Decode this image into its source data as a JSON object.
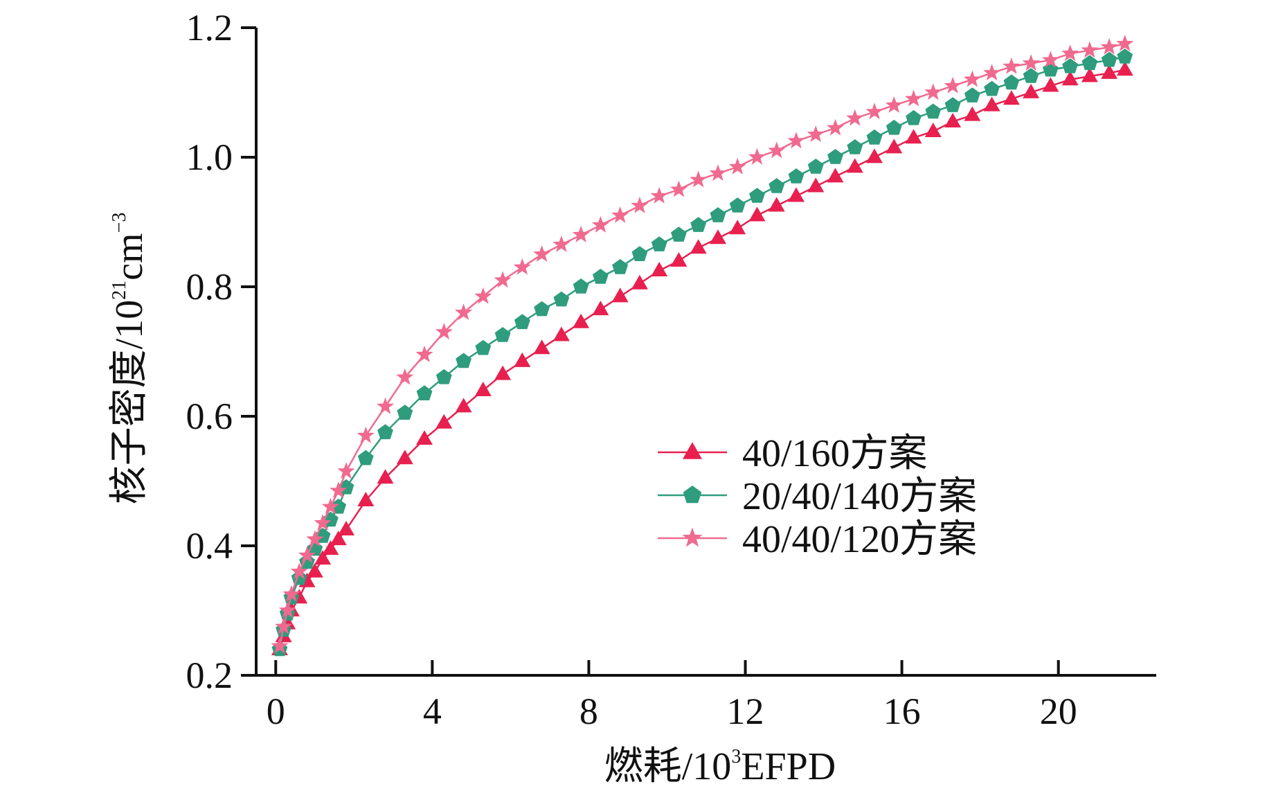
{
  "chart_data": {
    "type": "line",
    "title": "",
    "xlabel": {
      "prefix": "燃耗/10",
      "sup": "3",
      "suffix": "EFPD"
    },
    "ylabel": {
      "prefix": "核子密度/10",
      "sup": "21",
      "mid": "cm",
      "sup2": "−3"
    },
    "xlim": [
      -0.5,
      22.5
    ],
    "ylim": [
      0.2,
      1.2
    ],
    "xticks": [
      0,
      4,
      8,
      12,
      16,
      20
    ],
    "xtick_labels": [
      "0",
      "4",
      "8",
      "12",
      "16",
      "20"
    ],
    "yticks": [
      0.2,
      0.4,
      0.6,
      0.8,
      1.0,
      1.2
    ],
    "ytick_labels": [
      "0.2",
      "0.4",
      "0.6",
      "0.8",
      "1.0",
      "1.2"
    ],
    "grid": false,
    "legend_position": "center-right",
    "series": [
      {
        "name": "40/160方案",
        "color": "#e8204f",
        "marker": "triangle",
        "x": [
          0.1,
          0.2,
          0.3,
          0.4,
          0.6,
          0.8,
          1.0,
          1.2,
          1.4,
          1.6,
          1.8,
          2.3,
          2.8,
          3.3,
          3.8,
          4.3,
          4.8,
          5.3,
          5.8,
          6.3,
          6.8,
          7.3,
          7.8,
          8.3,
          8.8,
          9.3,
          9.8,
          10.3,
          10.8,
          11.3,
          11.8,
          12.3,
          12.8,
          13.3,
          13.8,
          14.3,
          14.8,
          15.3,
          15.8,
          16.3,
          16.8,
          17.3,
          17.8,
          18.3,
          18.8,
          19.3,
          19.8,
          20.3,
          20.8,
          21.3,
          21.7
        ],
        "y": [
          0.24,
          0.26,
          0.28,
          0.3,
          0.32,
          0.345,
          0.36,
          0.38,
          0.395,
          0.41,
          0.425,
          0.47,
          0.505,
          0.535,
          0.565,
          0.59,
          0.615,
          0.64,
          0.665,
          0.685,
          0.705,
          0.725,
          0.745,
          0.765,
          0.785,
          0.805,
          0.825,
          0.84,
          0.86,
          0.875,
          0.89,
          0.91,
          0.925,
          0.94,
          0.955,
          0.97,
          0.985,
          1.0,
          1.015,
          1.03,
          1.04,
          1.055,
          1.065,
          1.08,
          1.09,
          1.1,
          1.11,
          1.12,
          1.125,
          1.13,
          1.135
        ]
      },
      {
        "name": "20/40/140方案",
        "color": "#2e9c7d",
        "marker": "pentagon",
        "x": [
          0.1,
          0.2,
          0.3,
          0.4,
          0.6,
          0.8,
          1.0,
          1.2,
          1.4,
          1.6,
          1.8,
          2.3,
          2.8,
          3.3,
          3.8,
          4.3,
          4.8,
          5.3,
          5.8,
          6.3,
          6.8,
          7.3,
          7.8,
          8.3,
          8.8,
          9.3,
          9.8,
          10.3,
          10.8,
          11.3,
          11.8,
          12.3,
          12.8,
          13.3,
          13.8,
          14.3,
          14.8,
          15.3,
          15.8,
          16.3,
          16.8,
          17.3,
          17.8,
          18.3,
          18.8,
          19.3,
          19.8,
          20.3,
          20.8,
          21.3,
          21.7
        ],
        "y": [
          0.24,
          0.27,
          0.295,
          0.32,
          0.35,
          0.375,
          0.395,
          0.415,
          0.44,
          0.46,
          0.49,
          0.535,
          0.575,
          0.605,
          0.635,
          0.66,
          0.685,
          0.705,
          0.725,
          0.745,
          0.765,
          0.78,
          0.8,
          0.815,
          0.83,
          0.85,
          0.865,
          0.88,
          0.895,
          0.91,
          0.925,
          0.94,
          0.955,
          0.97,
          0.985,
          1.0,
          1.015,
          1.03,
          1.045,
          1.06,
          1.07,
          1.08,
          1.095,
          1.105,
          1.115,
          1.125,
          1.135,
          1.14,
          1.145,
          1.15,
          1.155
        ]
      },
      {
        "name": "40/40/120方案",
        "color": "#f06a90",
        "marker": "star",
        "x": [
          0.1,
          0.2,
          0.3,
          0.4,
          0.6,
          0.8,
          1.0,
          1.2,
          1.4,
          1.6,
          1.8,
          2.3,
          2.8,
          3.3,
          3.8,
          4.3,
          4.8,
          5.3,
          5.8,
          6.3,
          6.8,
          7.3,
          7.8,
          8.3,
          8.8,
          9.3,
          9.8,
          10.3,
          10.8,
          11.3,
          11.8,
          12.3,
          12.8,
          13.3,
          13.8,
          14.3,
          14.8,
          15.3,
          15.8,
          16.3,
          16.8,
          17.3,
          17.8,
          18.3,
          18.8,
          19.3,
          19.8,
          20.3,
          20.8,
          21.3,
          21.7
        ],
        "y": [
          0.245,
          0.275,
          0.3,
          0.325,
          0.36,
          0.385,
          0.41,
          0.435,
          0.46,
          0.485,
          0.515,
          0.57,
          0.615,
          0.66,
          0.695,
          0.73,
          0.76,
          0.785,
          0.81,
          0.83,
          0.85,
          0.865,
          0.88,
          0.895,
          0.91,
          0.925,
          0.94,
          0.95,
          0.965,
          0.975,
          0.985,
          1.0,
          1.01,
          1.025,
          1.035,
          1.045,
          1.06,
          1.07,
          1.08,
          1.09,
          1.1,
          1.11,
          1.12,
          1.13,
          1.14,
          1.145,
          1.15,
          1.16,
          1.165,
          1.17,
          1.175
        ]
      }
    ]
  }
}
